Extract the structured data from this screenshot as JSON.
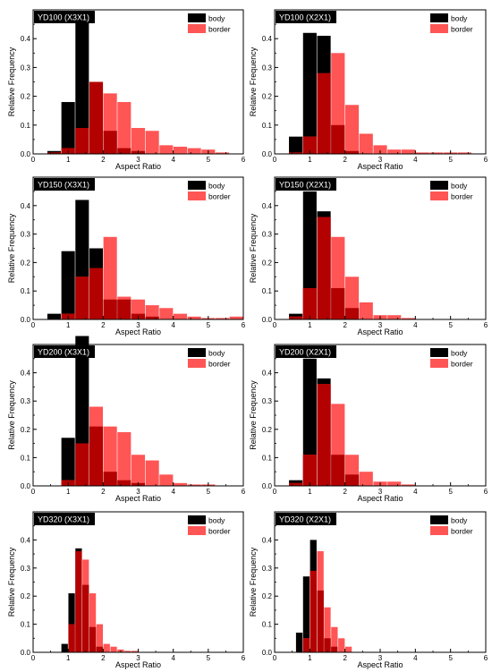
{
  "legend_labels": {
    "body": "body",
    "border": "border"
  },
  "colors": {
    "body": "#000000",
    "border": "#ff5555",
    "overlap": "#b30000"
  },
  "chart_data": [
    {
      "type": "bar",
      "title": "YD100 (X3X1)",
      "xlabel": "Aspect Ratio",
      "ylabel": "Relative Frequency",
      "xlim": [
        0,
        6
      ],
      "ylim": [
        0,
        0.5
      ],
      "bin_width": 0.4,
      "legend": "top-right",
      "xticks": [
        0,
        1,
        2,
        3,
        4,
        5,
        6
      ],
      "yticks": [
        0.0,
        0.1,
        0.2,
        0.3,
        0.4
      ],
      "x": [
        0.6,
        1.0,
        1.4,
        1.8,
        2.2,
        2.6,
        3.0,
        3.4,
        3.8,
        4.2,
        4.6,
        5.0,
        5.4
      ],
      "series": [
        {
          "name": "body",
          "values": [
            0.01,
            0.18,
            0.46,
            0.25,
            0.08,
            0.02,
            0.01,
            0,
            0,
            0,
            0,
            0,
            0
          ]
        },
        {
          "name": "border",
          "values": [
            0.005,
            0.02,
            0.09,
            0.25,
            0.21,
            0.18,
            0.09,
            0.08,
            0.03,
            0.025,
            0.02,
            0.015,
            0.005
          ]
        }
      ]
    },
    {
      "type": "bar",
      "title": "YD100 (X2X1)",
      "xlabel": "Aspect Ratio",
      "ylabel": "Relative Frequency",
      "xlim": [
        0,
        6
      ],
      "ylim": [
        0,
        0.5
      ],
      "bin_width": 0.4,
      "legend": "top-right",
      "xticks": [
        0,
        1,
        2,
        3,
        4,
        5,
        6
      ],
      "yticks": [
        0.0,
        0.1,
        0.2,
        0.3,
        0.4
      ],
      "x": [
        0.6,
        1.0,
        1.4,
        1.8,
        2.2,
        2.6,
        3.0,
        3.4,
        3.8,
        4.2,
        4.6,
        5.0,
        5.4
      ],
      "series": [
        {
          "name": "body",
          "values": [
            0.06,
            0.42,
            0.41,
            0.1,
            0.01,
            0,
            0,
            0,
            0,
            0,
            0,
            0,
            0
          ]
        },
        {
          "name": "border",
          "values": [
            0.005,
            0.06,
            0.28,
            0.35,
            0.17,
            0.07,
            0.03,
            0.015,
            0.015,
            0.005,
            0.005,
            0.005,
            0.005
          ]
        }
      ]
    },
    {
      "type": "bar",
      "title": "YD150 (X3X1)",
      "xlabel": "Aspect Ratio",
      "ylabel": "Relative Frequency",
      "xlim": [
        0,
        6
      ],
      "ylim": [
        0,
        0.5
      ],
      "bin_width": 0.4,
      "legend": "top-right",
      "xticks": [
        0,
        1,
        2,
        3,
        4,
        5,
        6
      ],
      "yticks": [
        0.0,
        0.1,
        0.2,
        0.3,
        0.4
      ],
      "x": [
        0.6,
        1.0,
        1.4,
        1.8,
        2.2,
        2.6,
        3.0,
        3.4,
        3.8,
        4.2,
        4.6,
        5.0,
        5.4,
        5.8
      ],
      "series": [
        {
          "name": "body",
          "values": [
            0.02,
            0.24,
            0.42,
            0.25,
            0.07,
            0.07,
            0.02,
            0.01,
            0,
            0,
            0,
            0,
            0,
            0
          ]
        },
        {
          "name": "border",
          "values": [
            0,
            0.02,
            0.15,
            0.18,
            0.29,
            0.08,
            0.07,
            0.05,
            0.04,
            0.02,
            0.01,
            0.005,
            0.005,
            0.01
          ]
        }
      ]
    },
    {
      "type": "bar",
      "title": "YD150 (X2X1)",
      "xlabel": "Aspect Ratio",
      "ylabel": "Relative Frequency",
      "xlim": [
        0,
        6
      ],
      "ylim": [
        0,
        0.5
      ],
      "bin_width": 0.4,
      "legend": "top-right",
      "xticks": [
        0,
        1,
        2,
        3,
        4,
        5,
        6
      ],
      "yticks": [
        0.0,
        0.1,
        0.2,
        0.3,
        0.4
      ],
      "x": [
        0.6,
        1.0,
        1.4,
        1.8,
        2.2,
        2.6,
        3.0,
        3.4,
        3.8
      ],
      "series": [
        {
          "name": "body",
          "values": [
            0.02,
            0.45,
            0.38,
            0.11,
            0.04,
            0,
            0,
            0,
            0
          ]
        },
        {
          "name": "border",
          "values": [
            0.01,
            0.11,
            0.36,
            0.29,
            0.15,
            0.06,
            0.015,
            0.015,
            0.005
          ]
        }
      ]
    },
    {
      "type": "bar",
      "title": "YD200 (X3X1)",
      "xlabel": "Aspect Ratio",
      "ylabel": "Relative Frequency",
      "xlim": [
        0,
        6
      ],
      "ylim": [
        0,
        0.5
      ],
      "bin_width": 0.4,
      "legend": "top-right",
      "xticks": [
        0,
        1,
        2,
        3,
        4,
        5,
        6
      ],
      "yticks": [
        0.0,
        0.1,
        0.2,
        0.3,
        0.4
      ],
      "x": [
        1.0,
        1.4,
        1.8,
        2.2,
        2.6,
        3.0,
        3.4,
        3.8,
        4.2,
        4.6,
        5.0
      ],
      "series": [
        {
          "name": "body",
          "values": [
            0.17,
            0.53,
            0.21,
            0.05,
            0.02,
            0.01,
            0,
            0,
            0,
            0,
            0
          ]
        },
        {
          "name": "border",
          "values": [
            0.02,
            0.15,
            0.28,
            0.21,
            0.19,
            0.11,
            0.09,
            0.04,
            0.01,
            0.005,
            0.005
          ]
        }
      ]
    },
    {
      "type": "bar",
      "title": "YD200 (X2X1)",
      "xlabel": "Aspect Ratio",
      "ylabel": "Relative Frequency",
      "xlim": [
        0,
        6
      ],
      "ylim": [
        0,
        0.5
      ],
      "bin_width": 0.4,
      "legend": "top-right",
      "xticks": [
        0,
        1,
        2,
        3,
        4,
        5,
        6
      ],
      "yticks": [
        0.0,
        0.1,
        0.2,
        0.3,
        0.4
      ],
      "x": [
        0.6,
        1.0,
        1.4,
        1.8,
        2.2,
        2.6,
        3.0,
        3.4,
        3.8
      ],
      "series": [
        {
          "name": "body",
          "values": [
            0.02,
            0.45,
            0.38,
            0.11,
            0.04,
            0,
            0,
            0,
            0
          ]
        },
        {
          "name": "border",
          "values": [
            0.01,
            0.11,
            0.36,
            0.29,
            0.11,
            0.05,
            0.015,
            0.015,
            0.005
          ]
        }
      ]
    },
    {
      "type": "bar",
      "title": "YD320 (X3X1)",
      "xlabel": "Aspect Ratio",
      "ylabel": "Relative Frequency",
      "xlim": [
        0,
        6
      ],
      "ylim": [
        0,
        0.5
      ],
      "bin_width": 0.2,
      "legend": "top-right",
      "xticks": [
        0,
        1,
        2,
        3,
        4,
        5,
        6
      ],
      "yticks": [
        0.0,
        0.1,
        0.2,
        0.3,
        0.4
      ],
      "x": [
        0.9,
        1.1,
        1.3,
        1.5,
        1.7,
        1.9,
        2.1,
        2.3,
        2.5,
        2.7,
        2.9
      ],
      "series": [
        {
          "name": "body",
          "values": [
            0.03,
            0.21,
            0.37,
            0.24,
            0.09,
            0.02,
            0,
            0,
            0,
            0,
            0
          ]
        },
        {
          "name": "border",
          "values": [
            0,
            0.1,
            0.36,
            0.33,
            0.21,
            0.1,
            0.03,
            0.02,
            0.01,
            0.005,
            0.005
          ]
        }
      ]
    },
    {
      "type": "bar",
      "title": "YD320 (X2X1)",
      "xlabel": "Aspect Ratio",
      "ylabel": "Relative Frequency",
      "xlim": [
        0,
        6
      ],
      "ylim": [
        0,
        0.5
      ],
      "bin_width": 0.2,
      "legend": "top-right",
      "xticks": [
        0,
        1,
        2,
        3,
        4,
        5,
        6
      ],
      "yticks": [
        0.0,
        0.1,
        0.2,
        0.3,
        0.4
      ],
      "x": [
        0.7,
        0.9,
        1.1,
        1.3,
        1.5,
        1.7,
        1.9,
        2.1
      ],
      "series": [
        {
          "name": "body",
          "values": [
            0.07,
            0.27,
            0.4,
            0.22,
            0.05,
            0.02,
            0,
            0
          ]
        },
        {
          "name": "border",
          "values": [
            0,
            0.05,
            0.29,
            0.36,
            0.16,
            0.09,
            0.05,
            0.02
          ]
        }
      ]
    }
  ]
}
